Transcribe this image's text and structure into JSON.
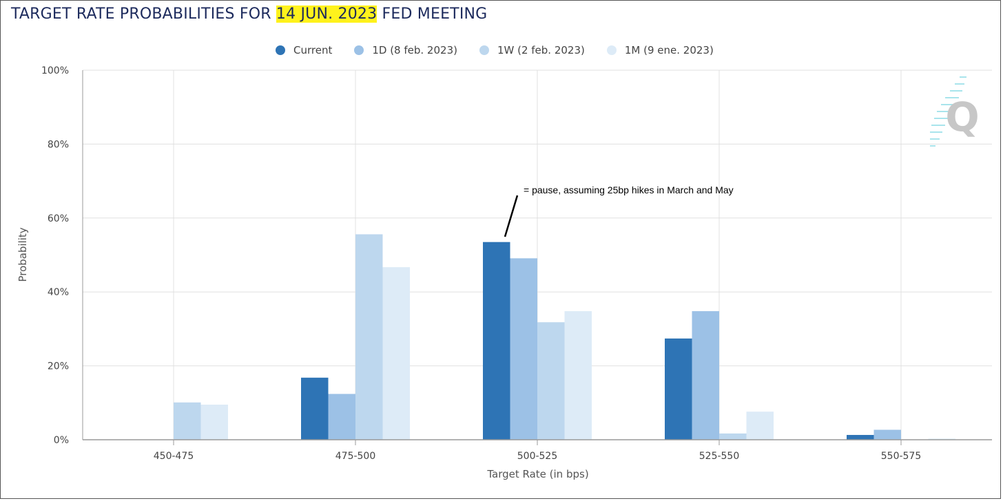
{
  "title": {
    "prefix": "TARGET RATE PROBABILITIES FOR ",
    "highlight": "14 JUN. 2023",
    "suffix": " FED MEETING"
  },
  "annotation": "= pause, assuming 25bp hikes in March and May",
  "colors": {
    "current": "#2e74b5",
    "d1": "#9cc1e6",
    "w1": "#bdd7ee",
    "m1": "#ddebf7",
    "highlight": "#fff21c"
  },
  "chart_data": {
    "type": "bar",
    "xlabel": "Target Rate (in bps)",
    "ylabel": "Probability",
    "ylim": [
      0,
      100
    ],
    "yticks": [
      "0%",
      "20%",
      "40%",
      "60%",
      "80%",
      "100%"
    ],
    "categories": [
      "450-475",
      "475-500",
      "500-525",
      "525-550",
      "550-575"
    ],
    "legend_position": "top-center",
    "grid": true,
    "series": [
      {
        "name": "Current",
        "color_key": "current",
        "values": [
          0,
          16.8,
          53.5,
          27.4,
          1.3
        ]
      },
      {
        "name": "1D (8 feb. 2023)",
        "color_key": "d1",
        "values": [
          0,
          12.4,
          49.1,
          34.8,
          2.7
        ]
      },
      {
        "name": "1W (2 feb. 2023)",
        "color_key": "w1",
        "values": [
          10.1,
          55.6,
          31.8,
          1.7,
          0
        ]
      },
      {
        "name": "1M (9 ene. 2023)",
        "color_key": "m1",
        "values": [
          9.5,
          46.7,
          34.8,
          7.6,
          0.3
        ]
      }
    ]
  }
}
